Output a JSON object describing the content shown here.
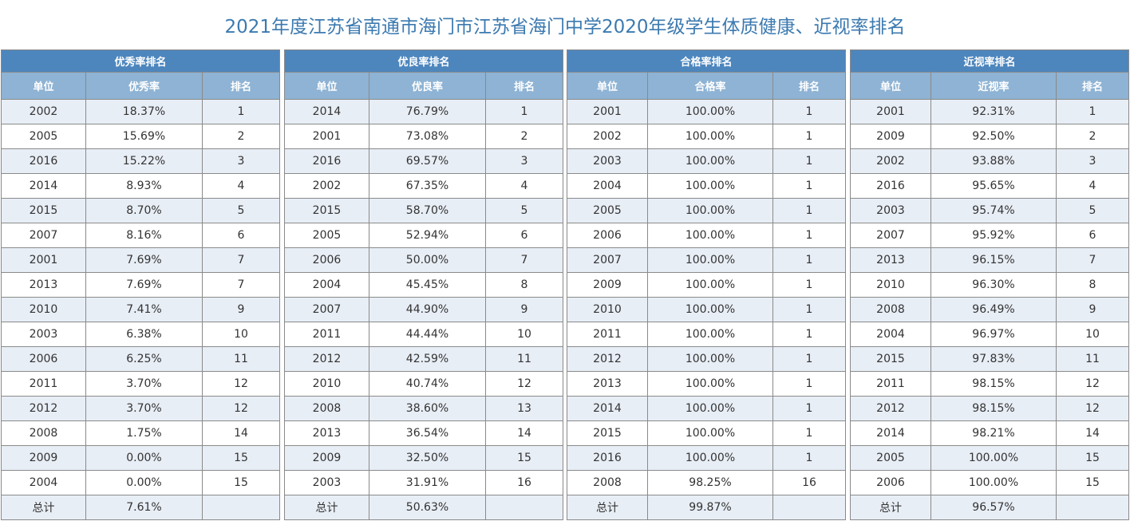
{
  "page": {
    "title": "2021年度江苏省南通市海门市江苏省海门中学2020年级学生体质健康、近视率排名"
  },
  "colors": {
    "title": "#3c7ab0",
    "caption_bg": "#4d86bd",
    "header_bg": "#8eb3d4",
    "row_alt_bg": "#e8eef6"
  },
  "tables": [
    {
      "caption": "优秀率排名",
      "headers": [
        "单位",
        "优秀率",
        "排名"
      ],
      "rows": [
        [
          "2002",
          "18.37%",
          "1"
        ],
        [
          "2005",
          "15.69%",
          "2"
        ],
        [
          "2016",
          "15.22%",
          "3"
        ],
        [
          "2014",
          "8.93%",
          "4"
        ],
        [
          "2015",
          "8.70%",
          "5"
        ],
        [
          "2007",
          "8.16%",
          "6"
        ],
        [
          "2001",
          "7.69%",
          "7"
        ],
        [
          "2013",
          "7.69%",
          "7"
        ],
        [
          "2010",
          "7.41%",
          "9"
        ],
        [
          "2003",
          "6.38%",
          "10"
        ],
        [
          "2006",
          "6.25%",
          "11"
        ],
        [
          "2011",
          "3.70%",
          "12"
        ],
        [
          "2012",
          "3.70%",
          "12"
        ],
        [
          "2008",
          "1.75%",
          "14"
        ],
        [
          "2009",
          "0.00%",
          "15"
        ],
        [
          "2004",
          "0.00%",
          "15"
        ],
        [
          "总计",
          "7.61%",
          ""
        ]
      ]
    },
    {
      "caption": "优良率排名",
      "headers": [
        "单位",
        "优良率",
        "排名"
      ],
      "rows": [
        [
          "2014",
          "76.79%",
          "1"
        ],
        [
          "2001",
          "73.08%",
          "2"
        ],
        [
          "2016",
          "69.57%",
          "3"
        ],
        [
          "2002",
          "67.35%",
          "4"
        ],
        [
          "2015",
          "58.70%",
          "5"
        ],
        [
          "2005",
          "52.94%",
          "6"
        ],
        [
          "2006",
          "50.00%",
          "7"
        ],
        [
          "2004",
          "45.45%",
          "8"
        ],
        [
          "2007",
          "44.90%",
          "9"
        ],
        [
          "2011",
          "44.44%",
          "10"
        ],
        [
          "2012",
          "42.59%",
          "11"
        ],
        [
          "2010",
          "40.74%",
          "12"
        ],
        [
          "2008",
          "38.60%",
          "13"
        ],
        [
          "2013",
          "36.54%",
          "14"
        ],
        [
          "2009",
          "32.50%",
          "15"
        ],
        [
          "2003",
          "31.91%",
          "16"
        ],
        [
          "总计",
          "50.63%",
          ""
        ]
      ]
    },
    {
      "caption": "合格率排名",
      "headers": [
        "单位",
        "合格率",
        "排名"
      ],
      "rows": [
        [
          "2001",
          "100.00%",
          "1"
        ],
        [
          "2002",
          "100.00%",
          "1"
        ],
        [
          "2003",
          "100.00%",
          "1"
        ],
        [
          "2004",
          "100.00%",
          "1"
        ],
        [
          "2005",
          "100.00%",
          "1"
        ],
        [
          "2006",
          "100.00%",
          "1"
        ],
        [
          "2007",
          "100.00%",
          "1"
        ],
        [
          "2009",
          "100.00%",
          "1"
        ],
        [
          "2010",
          "100.00%",
          "1"
        ],
        [
          "2011",
          "100.00%",
          "1"
        ],
        [
          "2012",
          "100.00%",
          "1"
        ],
        [
          "2013",
          "100.00%",
          "1"
        ],
        [
          "2014",
          "100.00%",
          "1"
        ],
        [
          "2015",
          "100.00%",
          "1"
        ],
        [
          "2016",
          "100.00%",
          "1"
        ],
        [
          "2008",
          "98.25%",
          "16"
        ],
        [
          "总计",
          "99.87%",
          ""
        ]
      ]
    },
    {
      "caption": "近视率排名",
      "headers": [
        "单位",
        "近视率",
        "排名"
      ],
      "rows": [
        [
          "2001",
          "92.31%",
          "1"
        ],
        [
          "2009",
          "92.50%",
          "2"
        ],
        [
          "2002",
          "93.88%",
          "3"
        ],
        [
          "2016",
          "95.65%",
          "4"
        ],
        [
          "2003",
          "95.74%",
          "5"
        ],
        [
          "2007",
          "95.92%",
          "6"
        ],
        [
          "2013",
          "96.15%",
          "7"
        ],
        [
          "2010",
          "96.30%",
          "8"
        ],
        [
          "2008",
          "96.49%",
          "9"
        ],
        [
          "2004",
          "96.97%",
          "10"
        ],
        [
          "2015",
          "97.83%",
          "11"
        ],
        [
          "2011",
          "98.15%",
          "12"
        ],
        [
          "2012",
          "98.15%",
          "12"
        ],
        [
          "2014",
          "98.21%",
          "14"
        ],
        [
          "2005",
          "100.00%",
          "15"
        ],
        [
          "2006",
          "100.00%",
          "15"
        ],
        [
          "总计",
          "96.57%",
          ""
        ]
      ]
    }
  ]
}
